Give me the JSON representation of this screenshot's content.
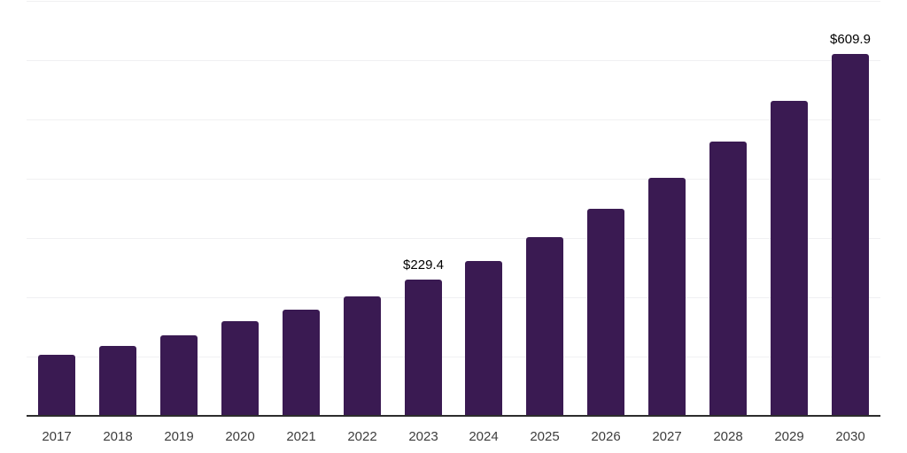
{
  "chart_data": {
    "type": "bar",
    "title": "",
    "categories": [
      "2017",
      "2018",
      "2019",
      "2020",
      "2021",
      "2022",
      "2023",
      "2024",
      "2025",
      "2026",
      "2027",
      "2028",
      "2029",
      "2030"
    ],
    "values": [
      103,
      118,
      136,
      159,
      179,
      201,
      229.4,
      261,
      301,
      349,
      402,
      463,
      532,
      609.9
    ],
    "bar_labels": [
      "",
      "",
      "",
      "",
      "",
      "",
      "$229.4",
      "",
      "",
      "",
      "",
      "",
      "",
      "$609.9"
    ],
    "labeled_points": [
      {
        "category": "2023",
        "label": "$229.4"
      },
      {
        "category": "2030",
        "label": "$609.9"
      }
    ],
    "xlabel": "",
    "ylabel": "",
    "ylim": [
      0,
      700
    ],
    "gridline_values": [
      700,
      600,
      500,
      400,
      300,
      200,
      100
    ],
    "grid": "horizontal",
    "legend_position": "none",
    "y_tick_labels_visible": false,
    "colors": {
      "bar_fill": "#3a1a52",
      "axis_line": "#2d2d2d",
      "gridline": "#f0f0f2",
      "tick_label": "#3d3d3d",
      "data_label": "#000000",
      "background": "#ffffff"
    }
  }
}
